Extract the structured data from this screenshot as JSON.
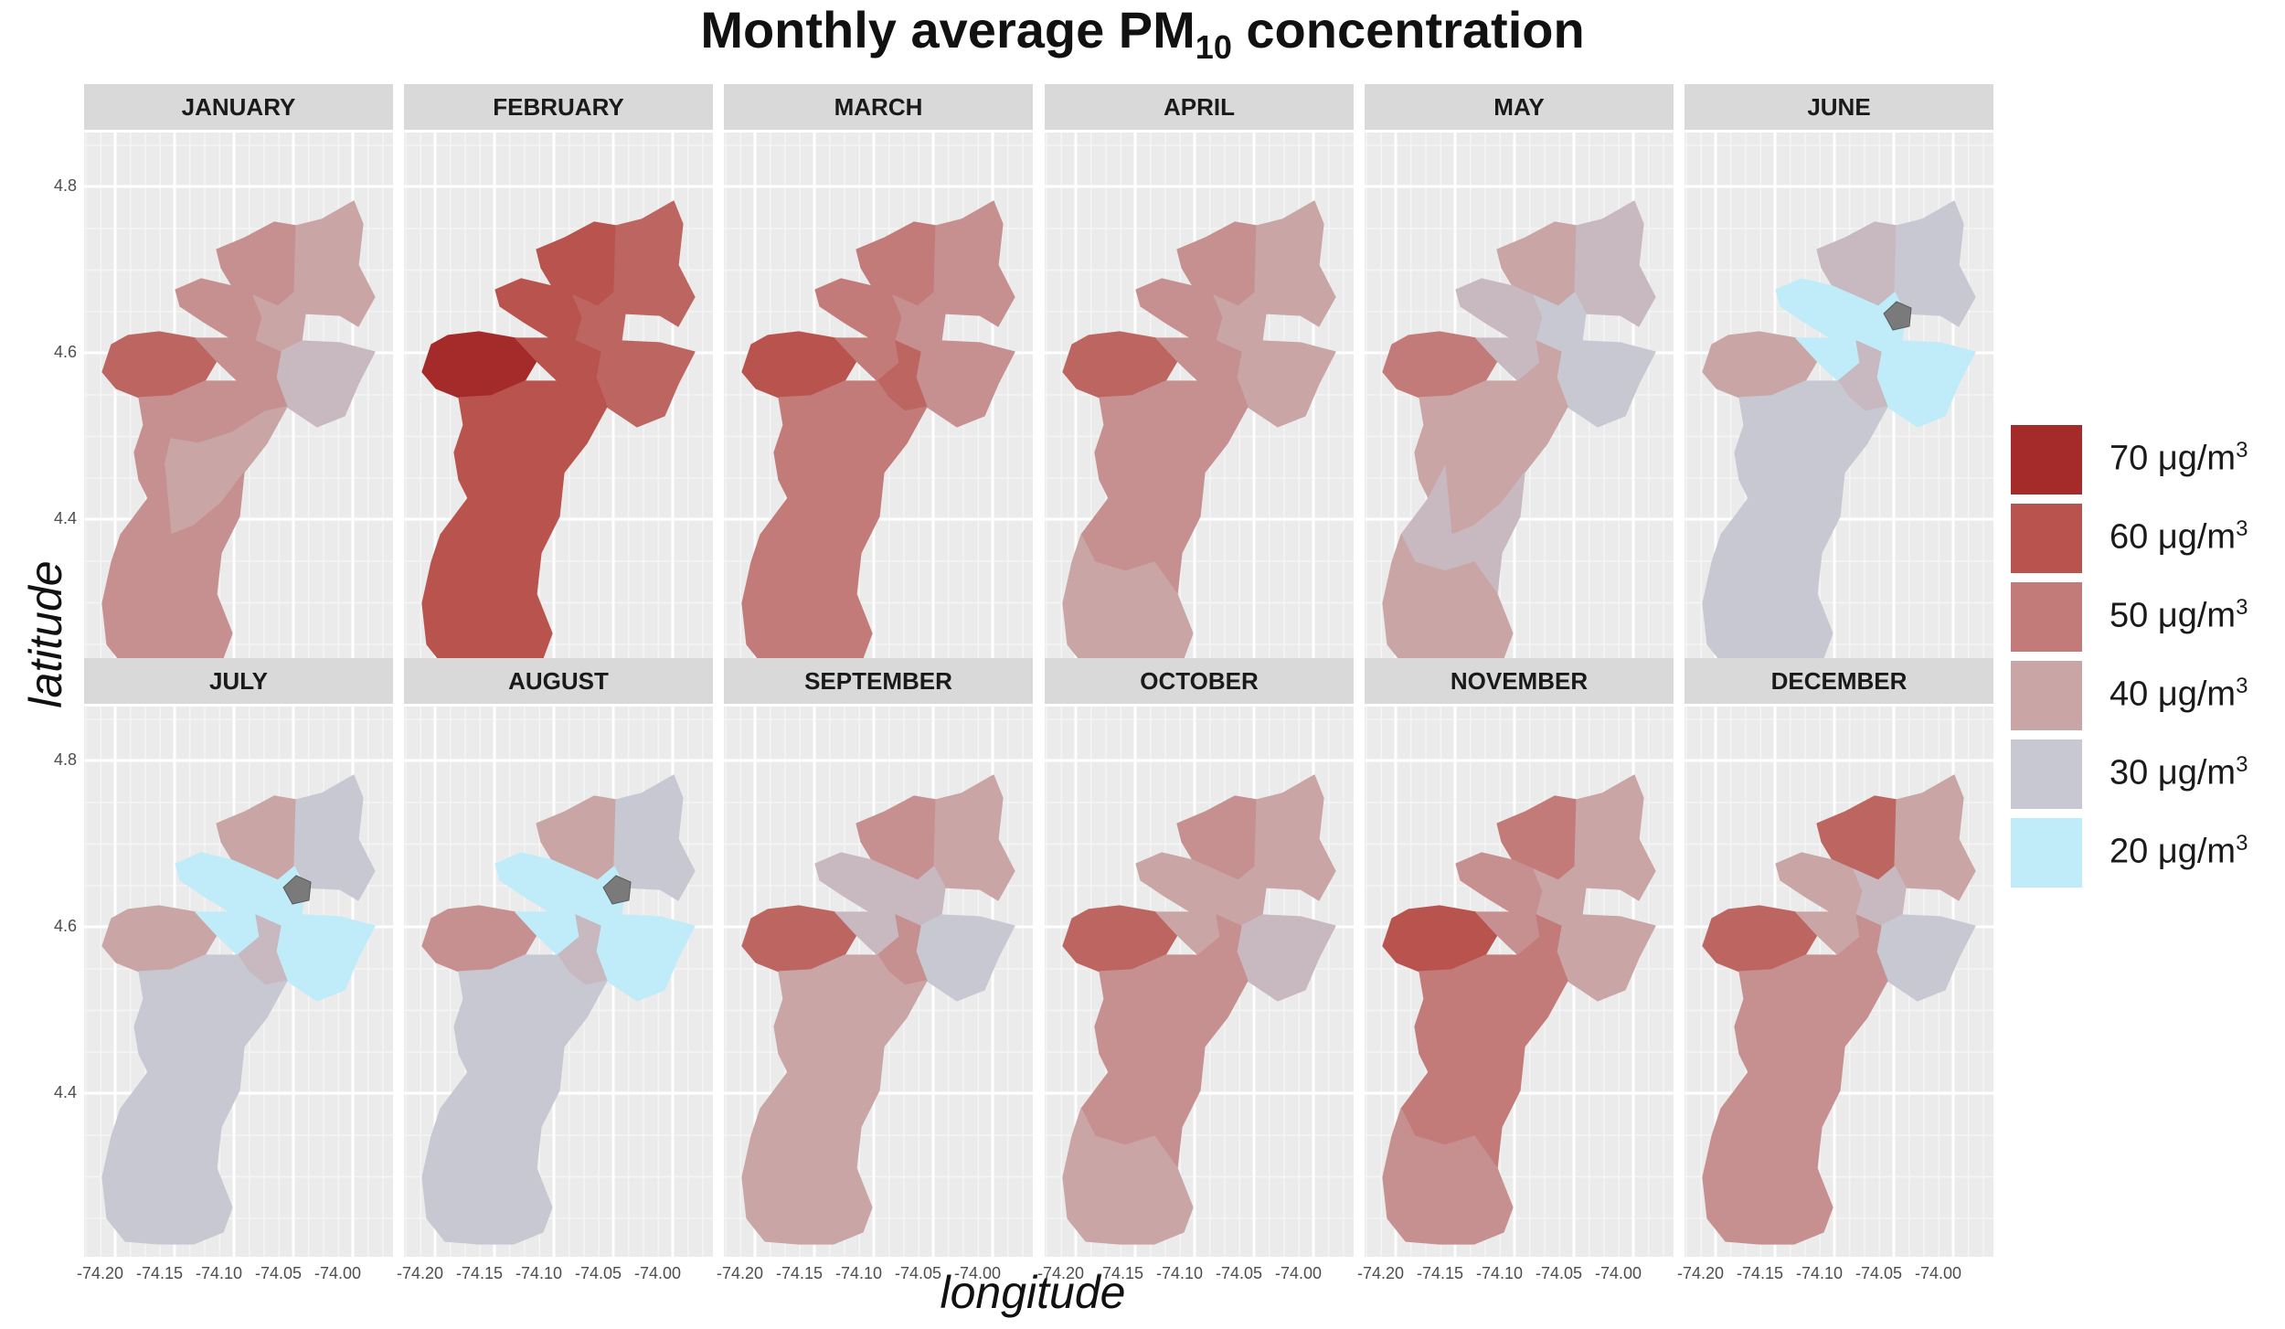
{
  "title": {
    "main": "Monthly average PM",
    "sub": "10",
    "rest": " concentration"
  },
  "axes": {
    "y_title": "latitude",
    "x_title": "longitude",
    "y_ticks": [
      "4.8",
      "4.6",
      "4.4"
    ],
    "x_ticks": [
      "-74.20",
      "-74.15",
      "-74.10",
      "-74.05",
      "-74.00"
    ]
  },
  "panels": [
    {
      "month": "JANUARY",
      "levels": [
        45,
        40,
        45,
        40,
        55,
        45,
        35,
        45,
        45,
        45,
        40,
        45,
        45,
        45
      ]
    },
    {
      "month": "FEBRUARY",
      "levels": [
        60,
        55,
        60,
        55,
        70,
        60,
        55,
        60,
        60,
        60,
        60,
        60,
        60,
        60
      ]
    },
    {
      "month": "MARCH",
      "levels": [
        50,
        45,
        50,
        45,
        60,
        50,
        45,
        55,
        50,
        50,
        50,
        50,
        50,
        50
      ]
    },
    {
      "month": "APRIL",
      "levels": [
        45,
        40,
        45,
        40,
        55,
        45,
        40,
        45,
        45,
        45,
        45,
        45,
        45,
        40
      ]
    },
    {
      "month": "MAY",
      "levels": [
        40,
        35,
        35,
        30,
        50,
        35,
        30,
        40,
        40,
        40,
        40,
        35,
        35,
        40
      ]
    },
    {
      "month": "JUNE",
      "levels": [
        35,
        30,
        20,
        20,
        40,
        20,
        20,
        35,
        30,
        30,
        30,
        30,
        30,
        30
      ],
      "gray": true
    },
    {
      "month": "JULY",
      "levels": [
        40,
        30,
        20,
        20,
        40,
        20,
        20,
        35,
        30,
        30,
        30,
        30,
        30,
        30
      ],
      "gray": true
    },
    {
      "month": "AUGUST",
      "levels": [
        40,
        30,
        20,
        20,
        45,
        20,
        20,
        35,
        30,
        30,
        30,
        30,
        30,
        30
      ],
      "gray": true
    },
    {
      "month": "SEPTEMBER",
      "levels": [
        45,
        40,
        35,
        35,
        55,
        35,
        30,
        45,
        40,
        40,
        40,
        40,
        40,
        40
      ]
    },
    {
      "month": "OCTOBER",
      "levels": [
        45,
        40,
        40,
        40,
        55,
        40,
        35,
        45,
        45,
        45,
        45,
        45,
        45,
        40
      ]
    },
    {
      "month": "NOVEMBER",
      "levels": [
        50,
        40,
        45,
        40,
        60,
        45,
        40,
        50,
        50,
        50,
        50,
        50,
        50,
        45
      ]
    },
    {
      "month": "DECEMBER",
      "levels": [
        55,
        40,
        40,
        35,
        55,
        40,
        30,
        45,
        45,
        45,
        45,
        45,
        45,
        45
      ]
    }
  ],
  "legend": {
    "unit": "μg/m",
    "unit_sup": "3",
    "items": [
      {
        "value": "70",
        "color": "#a52a2a"
      },
      {
        "value": "60",
        "color": "#b9534d"
      },
      {
        "value": "50",
        "color": "#c27b78"
      },
      {
        "value": "40",
        "color": "#c9a5a5"
      },
      {
        "value": "30",
        "color": "#c8c8d2"
      },
      {
        "value": "20",
        "color": "#bfecf8"
      }
    ]
  },
  "colors": {
    "scale": {
      "20": "#bfecf8",
      "30": "#c8c8d2",
      "35": "#c8b8c0",
      "40": "#c9a5a5",
      "45": "#c69090",
      "50": "#c27b78",
      "55": "#bd6560",
      "60": "#b9534d",
      "70": "#a52a2a"
    },
    "missing": "#7a7a7a",
    "panel_bg": "#ebebeb",
    "strip_bg": "#d9d9d9"
  }
}
